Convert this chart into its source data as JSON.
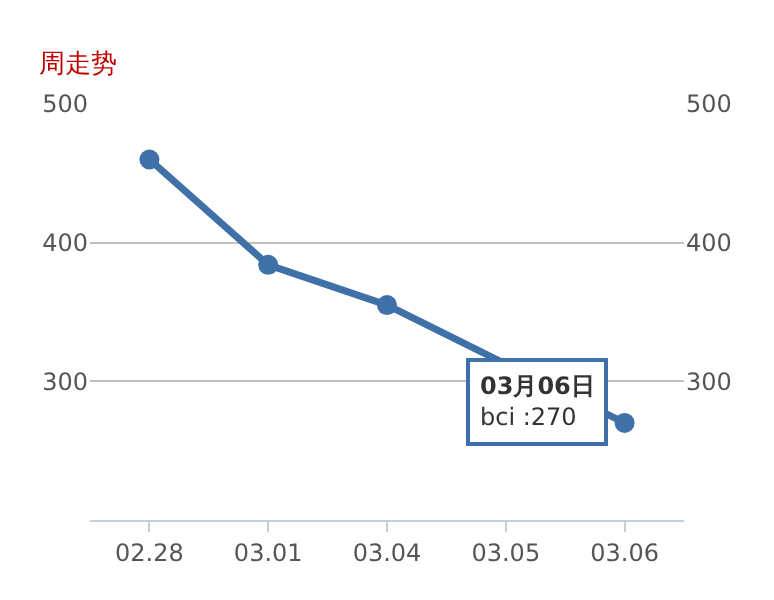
{
  "chart_data": {
    "type": "line",
    "title": "周走势",
    "categories": [
      "02.28",
      "03.01",
      "03.04",
      "03.05",
      "03.06"
    ],
    "series": [
      {
        "color": "#4070a8",
        "values": [
          460,
          384,
          355,
          null,
          270
        ]
      }
    ],
    "ylim": [
      200,
      500
    ],
    "yticks": [
      300,
      400,
      500
    ],
    "y2lim": [
      200,
      500
    ],
    "y2ticks": [
      300,
      400,
      500
    ],
    "grid": "y",
    "marker": "circle",
    "line_style": "solid",
    "annotations": [
      {
        "text": "03月06日\nbci :270",
        "x": "03.06",
        "y": 270
      }
    ]
  }
}
